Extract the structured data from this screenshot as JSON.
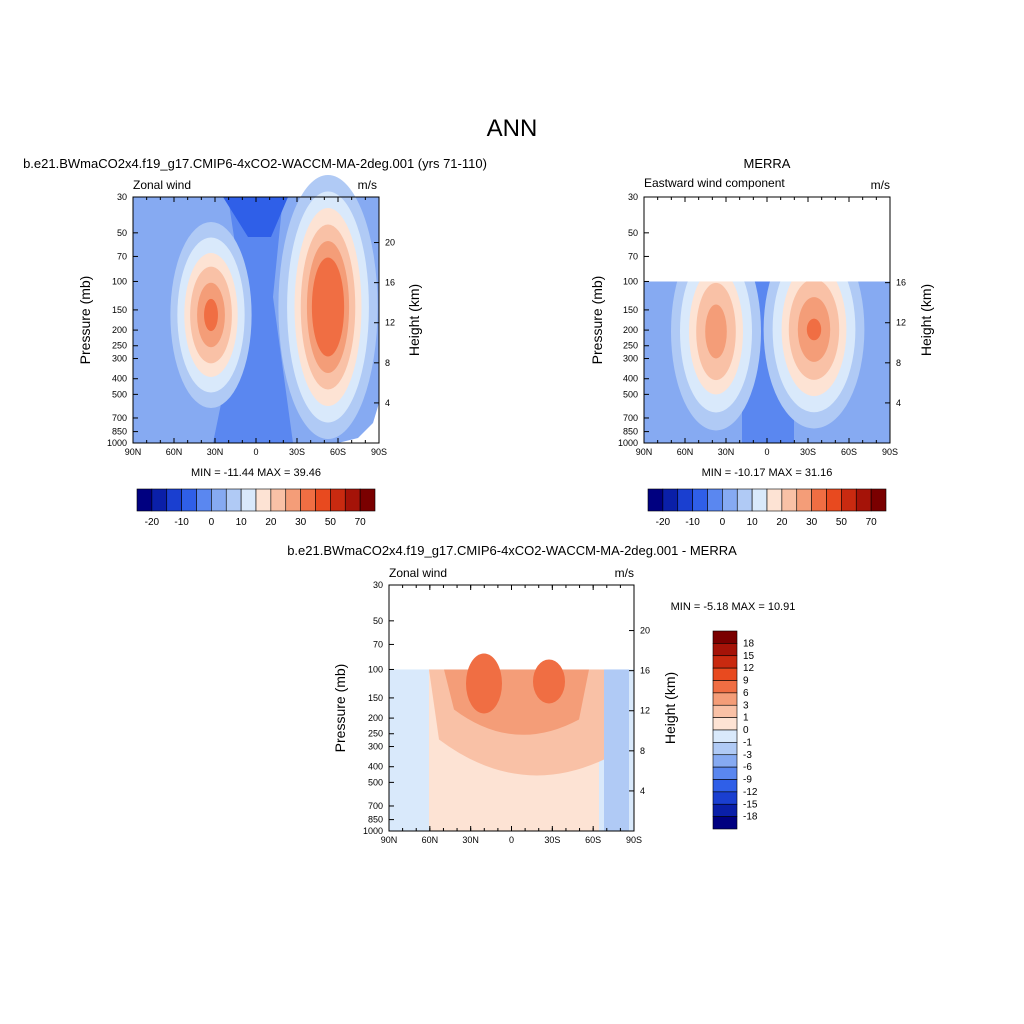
{
  "page": {
    "title": "ANN"
  },
  "colors": {
    "cbar_main": [
      "#000080",
      "#0a1fa8",
      "#1a3fd0",
      "#2f5fe8",
      "#5a87f0",
      "#86aaf2",
      "#b0caf5",
      "#d9e9fb",
      "#fde3d4",
      "#f9c1a6",
      "#f49d78",
      "#f06e43",
      "#e84a1f",
      "#c92a10",
      "#a51308",
      "#7a0000"
    ],
    "cbar_diff": [
      "#000080",
      "#0a1fa8",
      "#1a3fd0",
      "#2f5fe8",
      "#5a87f0",
      "#86aaf2",
      "#b0caf5",
      "#d9e9fb",
      "#fde3d4",
      "#f9c1a6",
      "#f49d78",
      "#f06e43",
      "#e84a1f",
      "#c92a10",
      "#a51308",
      "#7a0000"
    ]
  },
  "chart_data": [
    {
      "type": "heatmap",
      "title": "b.e21.BWmaCO2x4.f19_g17.CMIP6-4xCO2-WACCM-MA-2deg.001 (yrs 71-110)",
      "left_label": "Zonal wind",
      "right_label": "m/s",
      "ylabel": "Pressure (mb)",
      "ylabel_right": "Height (km)",
      "x_ticks": [
        "90N",
        "60N",
        "30N",
        "0",
        "30S",
        "60S",
        "90S"
      ],
      "y_ticks": [
        "30",
        "50",
        "70",
        "100",
        "150",
        "200",
        "250",
        "300",
        "400",
        "500",
        "700",
        "850",
        "1000"
      ],
      "height_ticks": [
        "20",
        "16",
        "12",
        "8",
        "4"
      ],
      "stats": "MIN = -11.44  MAX =  39.46",
      "ylim_mb": [
        1000,
        30
      ],
      "data_top_mb": 30,
      "jets": [
        {
          "lat": -30,
          "p": 170,
          "value": 30
        },
        {
          "lat": 30,
          "p": 170,
          "value": 39
        }
      ],
      "colorbar_labels": [
        "-20",
        "-10",
        "0",
        "10",
        "20",
        "30",
        "50",
        "70"
      ]
    },
    {
      "type": "heatmap",
      "title": "MERRA",
      "left_label": "Eastward wind component",
      "right_label": "m/s",
      "ylabel": "Pressure (mb)",
      "ylabel_right": "Height (km)",
      "x_ticks": [
        "90N",
        "60N",
        "30N",
        "0",
        "30S",
        "60S",
        "90S"
      ],
      "y_ticks": [
        "30",
        "50",
        "70",
        "100",
        "150",
        "200",
        "250",
        "300",
        "400",
        "500",
        "700",
        "850",
        "1000"
      ],
      "height_ticks": [
        "16",
        "12",
        "8",
        "4"
      ],
      "stats": "MIN = -10.17  MAX =  31.16",
      "ylim_mb": [
        1000,
        30
      ],
      "data_top_mb": 100,
      "jets": [
        {
          "lat": -30,
          "p": 200,
          "value": 26
        },
        {
          "lat": 30,
          "p": 200,
          "value": 31
        }
      ],
      "colorbar_labels": [
        "-20",
        "-10",
        "0",
        "10",
        "20",
        "30",
        "50",
        "70"
      ]
    },
    {
      "type": "heatmap",
      "title": "b.e21.BWmaCO2x4.f19_g17.CMIP6-4xCO2-WACCM-MA-2deg.001 - MERRA",
      "left_label": "Zonal wind",
      "right_label": "m/s",
      "ylabel": "Pressure (mb)",
      "ylabel_right": "Height (km)",
      "x_ticks": [
        "90N",
        "60N",
        "30N",
        "0",
        "30S",
        "60S",
        "90S"
      ],
      "y_ticks": [
        "30",
        "50",
        "70",
        "100",
        "150",
        "200",
        "250",
        "300",
        "400",
        "500",
        "700",
        "850",
        "1000"
      ],
      "height_ticks": [
        "20",
        "16",
        "12",
        "8",
        "4"
      ],
      "stats": "MIN =  -5.18  MAX =  10.91",
      "ylim_mb": [
        1000,
        30
      ],
      "data_top_mb": 100,
      "colorbar_labels": [
        "18",
        "15",
        "12",
        "9",
        "6",
        "3",
        "1",
        "0",
        "-1",
        "-3",
        "-6",
        "-9",
        "-12",
        "-15",
        "-18"
      ]
    }
  ]
}
